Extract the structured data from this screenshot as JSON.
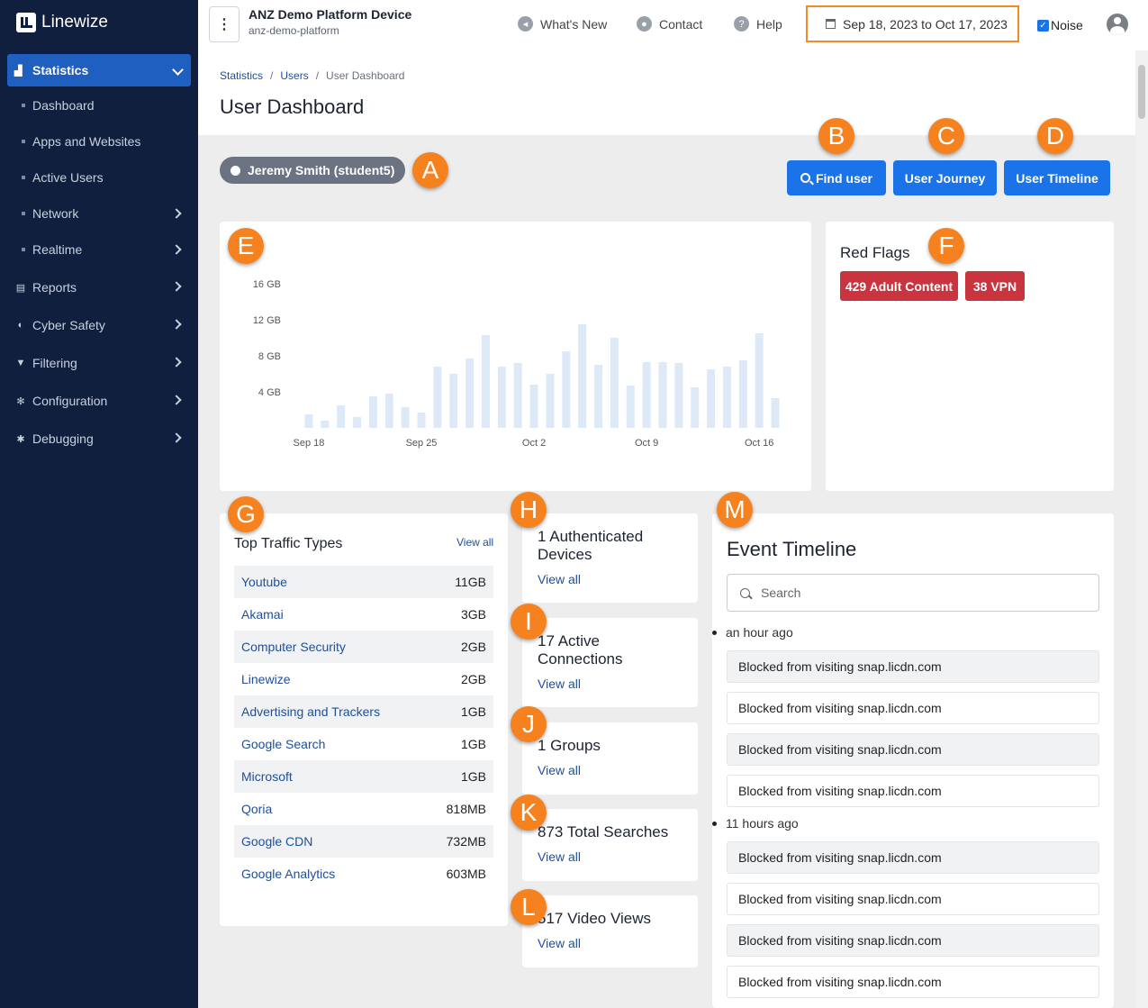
{
  "app": {
    "name": "Linewize"
  },
  "sidebar": {
    "active": "Statistics",
    "sub_items": [
      "Dashboard",
      "Apps and Websites",
      "Active Users",
      "Network",
      "Realtime"
    ],
    "items": [
      "Reports",
      "Cyber Safety",
      "Filtering",
      "Configuration",
      "Debugging"
    ]
  },
  "topbar": {
    "device_name": "ANZ Demo Platform Device",
    "device_id": "anz-demo-platform",
    "whats_new": "What's New",
    "contact": "Contact",
    "help": "Help",
    "date_range": "Sep 18, 2023 to Oct 17, 2023",
    "noise_label": "Noise",
    "noise_checked": true
  },
  "breadcrumb": [
    "Statistics",
    "Users",
    "User Dashboard"
  ],
  "page_title": "User Dashboard",
  "user_pill": "Jeremy Smith (student5)",
  "buttons": {
    "find_user": "Find user",
    "user_journey": "User Journey",
    "user_timeline": "User Timeline"
  },
  "annotations": [
    "A",
    "B",
    "C",
    "D",
    "E",
    "F",
    "G",
    "H",
    "I",
    "J",
    "K",
    "L",
    "M"
  ],
  "colors": {
    "sidebar": "#0f1f3d",
    "accent": "#1a73e8",
    "badge": "#f5821f",
    "red_flag": "#c9343f",
    "highlight": "#f28a25"
  },
  "chart_data": {
    "type": "bar",
    "x": [
      "Sep 18",
      "Sep 19",
      "Sep 20",
      "Sep 21",
      "Sep 22",
      "Sep 23",
      "Sep 24",
      "Sep 25",
      "Sep 26",
      "Sep 27",
      "Sep 28",
      "Sep 29",
      "Sep 30",
      "Oct 1",
      "Oct 2",
      "Oct 3",
      "Oct 4",
      "Oct 5",
      "Oct 6",
      "Oct 7",
      "Oct 8",
      "Oct 9",
      "Oct 10",
      "Oct 11",
      "Oct 12",
      "Oct 13",
      "Oct 14",
      "Oct 15",
      "Oct 16",
      "Oct 17"
    ],
    "values": [
      1.5,
      0.8,
      2.5,
      1.2,
      3.5,
      3.8,
      2.3,
      1.7,
      6.8,
      6.0,
      7.7,
      10.3,
      6.8,
      7.2,
      4.8,
      6.0,
      8.5,
      11.5,
      7.0,
      10.0,
      4.7,
      7.3,
      7.3,
      7.2,
      4.5,
      6.5,
      6.8,
      7.5,
      10.5,
      3.3
    ],
    "tick_labels": [
      "Sep 18",
      "Sep 25",
      "Oct 2",
      "Oct 9",
      "Oct 16"
    ],
    "y_ticks": [
      "4 GB",
      "8 GB",
      "12 GB",
      "16 GB"
    ],
    "ylim": [
      0,
      16
    ],
    "bar_color": "#dde9f6"
  },
  "red_flags": {
    "title": "Red Flags",
    "tags": [
      "429 Adult Content",
      "38 VPN"
    ]
  },
  "top_traffic": {
    "title": "Top Traffic Types",
    "view_all": "View all",
    "rows": [
      {
        "name": "Youtube",
        "value": "11GB"
      },
      {
        "name": "Akamai",
        "value": "3GB"
      },
      {
        "name": "Computer Security",
        "value": "2GB"
      },
      {
        "name": "Linewize",
        "value": "2GB"
      },
      {
        "name": "Advertising and Trackers",
        "value": "1GB"
      },
      {
        "name": "Google Search",
        "value": "1GB"
      },
      {
        "name": "Microsoft",
        "value": "1GB"
      },
      {
        "name": "Qoria",
        "value": "818MB"
      },
      {
        "name": "Google CDN",
        "value": "732MB"
      },
      {
        "name": "Google Analytics",
        "value": "603MB"
      }
    ]
  },
  "stats": [
    {
      "title": "1 Authenticated Devices",
      "link": "View all"
    },
    {
      "title": "17 Active Connections",
      "link": "View all"
    },
    {
      "title": "1 Groups",
      "link": "View all"
    },
    {
      "title": "873 Total Searches",
      "link": "View all"
    },
    {
      "title": "517 Video Views",
      "link": "View all"
    }
  ],
  "event_timeline": {
    "title": "Event Timeline",
    "search_placeholder": "Search",
    "groups": [
      {
        "time": "an hour ago",
        "events": [
          "Blocked from visiting snap.licdn.com",
          "Blocked from visiting snap.licdn.com",
          "Blocked from visiting snap.licdn.com",
          "Blocked from visiting snap.licdn.com"
        ]
      },
      {
        "time": "11 hours ago",
        "events": [
          "Blocked from visiting snap.licdn.com",
          "Blocked from visiting snap.licdn.com",
          "Blocked from visiting snap.licdn.com",
          "Blocked from visiting snap.licdn.com"
        ]
      }
    ]
  }
}
